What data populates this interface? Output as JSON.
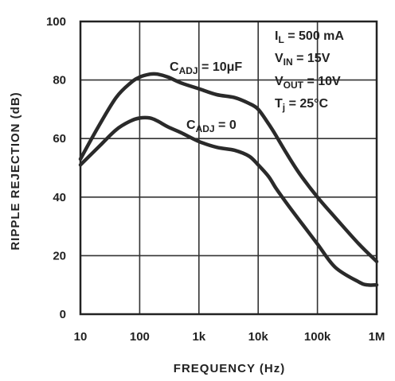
{
  "chart_data": {
    "type": "line",
    "xlabel": "FREQUENCY (Hz)",
    "ylabel": "RIPPLE REJECTION (dB)",
    "x_scale": "log",
    "xlim": [
      10,
      1000000
    ],
    "ylim": [
      0,
      100
    ],
    "x_tick_values": [
      10,
      100,
      1000,
      10000,
      100000,
      1000000
    ],
    "x_tick_labels": [
      "10",
      "100",
      "1k",
      "10k",
      "100k",
      "1M"
    ],
    "y_tick_values": [
      0,
      20,
      40,
      60,
      80,
      100
    ],
    "y_tick_labels": [
      "0",
      "20",
      "40",
      "60",
      "80",
      "100"
    ],
    "grid": true,
    "annotations": [
      "I_L = 500 mA",
      "V_IN = 15V",
      "V_OUT = 10V",
      "T_j = 25°C"
    ],
    "series": [
      {
        "name": "C_ADJ = 10μF",
        "x": [
          10,
          20,
          40,
          70,
          100,
          150,
          200,
          300,
          500,
          1000,
          2000,
          4000,
          7000,
          10000,
          15000,
          20000,
          30000,
          50000,
          100000,
          200000,
          500000,
          1000000
        ],
        "y": [
          53,
          64,
          74,
          79,
          81,
          82,
          82,
          81,
          79,
          77,
          75,
          74,
          72,
          70,
          65,
          61,
          55,
          48,
          40,
          33,
          24,
          18
        ]
      },
      {
        "name": "C_ADJ = 0",
        "x": [
          10,
          20,
          40,
          70,
          100,
          150,
          200,
          300,
          500,
          1000,
          2000,
          4000,
          7000,
          10000,
          15000,
          20000,
          30000,
          50000,
          100000,
          200000,
          500000,
          700000,
          1000000
        ],
        "y": [
          51,
          57,
          63,
          66,
          67,
          67,
          66,
          64,
          62,
          59,
          57,
          56,
          54,
          51,
          47,
          43,
          38,
          32,
          24,
          16,
          11,
          10,
          10
        ]
      }
    ]
  },
  "labels": {
    "series1_main": "C",
    "series1_sub": "ADJ",
    "series1_tail": " = 10μF",
    "series2_main": "C",
    "series2_sub": "ADJ",
    "series2_tail": " = 0",
    "anno1_main": "I",
    "anno1_sub": "L",
    "anno1_tail": " = 500 mA",
    "anno2_main": "V",
    "anno2_sub": "IN",
    "anno2_tail": " = 15V",
    "anno3_main": "V",
    "anno3_sub": "OUT",
    "anno3_tail": " = 10V",
    "anno4_main": "T",
    "anno4_sub": "j",
    "anno4_tail": " = 25°C"
  }
}
